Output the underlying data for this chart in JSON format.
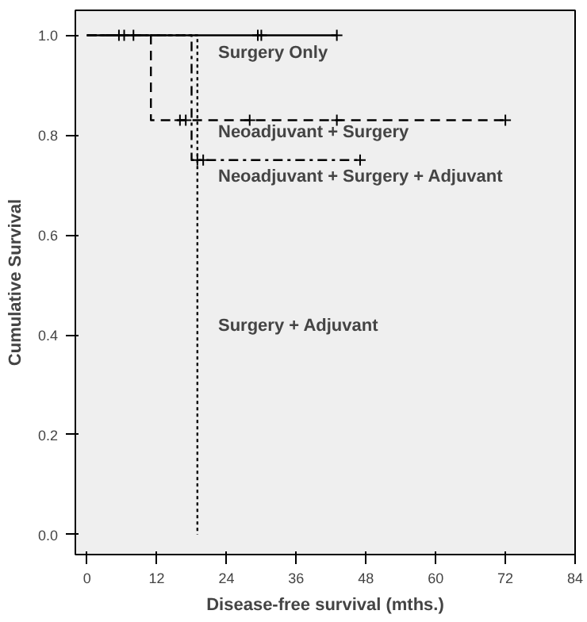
{
  "chart_data": {
    "type": "step",
    "xlabel": "Disease-free survival (mths.)",
    "ylabel": "Cumulative Survival",
    "xlim": [
      -2,
      84
    ],
    "ylim": [
      -0.04,
      1.05
    ],
    "xticks": [
      0,
      12,
      24,
      36,
      48,
      60,
      72,
      84
    ],
    "yticks": [
      {
        "value": 0,
        "label": "0.0"
      },
      {
        "value": 0.2,
        "label": "0.2"
      },
      {
        "value": 0.4,
        "label": "0.4"
      },
      {
        "value": 0.6,
        "label": "0.6"
      },
      {
        "value": 0.8,
        "label": "0.8"
      },
      {
        "value": 1,
        "label": "1.0"
      }
    ],
    "grid": false,
    "series": [
      {
        "color": "#000000",
        "line_style": "solid",
        "x": [
          0,
          43
        ],
        "values": [
          1,
          1
        ]
      },
      {
        "color": "#000000",
        "line_style": "dashed",
        "x": [
          0,
          11,
          72
        ],
        "values": [
          1,
          0.83,
          0.83
        ]
      },
      {
        "color": "#000000",
        "line_style": "dashdot",
        "x": [
          0,
          18,
          47
        ],
        "values": [
          1,
          0.75,
          0.75
        ]
      },
      {
        "color": "#000000",
        "line_style": "dotted",
        "x": [
          0,
          19
        ],
        "values": [
          1,
          0
        ]
      },
      {
        "type": "scatter",
        "marker": "cross",
        "color": "#000000",
        "x": [
          5.5,
          6.4,
          8,
          29.4,
          30,
          43
        ],
        "values": [
          1,
          1,
          1,
          1,
          1,
          1
        ]
      },
      {
        "type": "scatter",
        "marker": "cross",
        "color": "#000000",
        "x": [
          16,
          17,
          28,
          43,
          72
        ],
        "values": [
          0.83,
          0.83,
          0.83,
          0.83,
          0.83
        ]
      },
      {
        "type": "scatter",
        "marker": "cross",
        "color": "#000000",
        "x": [
          19,
          20,
          47
        ],
        "values": [
          0.75,
          0.75,
          0.75
        ]
      }
    ],
    "annotations": [
      "Surgery Only",
      "Neoadjuvant + Surgery",
      "Neoadjuvant + Surgery + Adjuvant",
      "Surgery + Adjuvant"
    ]
  }
}
